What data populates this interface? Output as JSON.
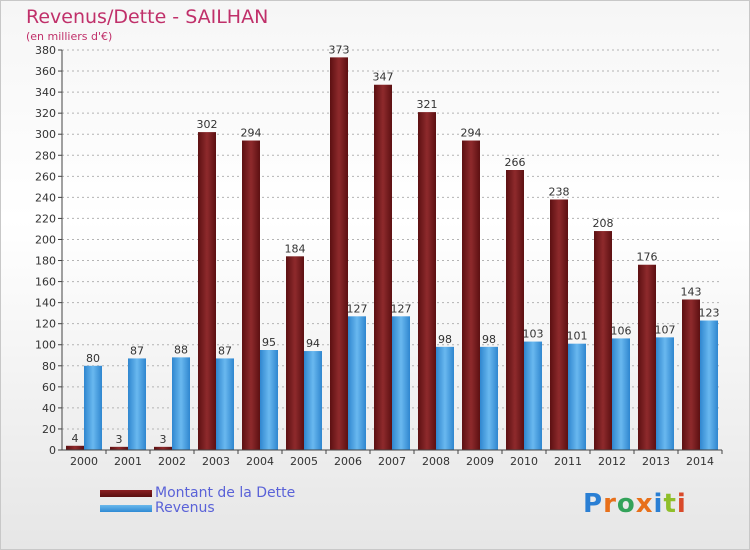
{
  "title": "Revenus/Dette - SAILHAN",
  "subtitle": "(en milliers d'€)",
  "logo": {
    "letters": [
      "P",
      "r",
      "o",
      "x",
      "i",
      "t",
      "i"
    ],
    "colors": [
      "#2a7fd4",
      "#e8701a",
      "#33a35a",
      "#e8701a",
      "#2a7fd4",
      "#8fbf2a",
      "#d94a2a"
    ]
  },
  "colors": {
    "dette": "#7a1a1c",
    "revenus": "#3b9ae0",
    "title": "#c0306a",
    "legend_text": "#5a62d8"
  },
  "chart_data": {
    "type": "bar",
    "title": "Revenus/Dette - SAILHAN",
    "subtitle": "(en milliers d'€)",
    "categories": [
      "2000",
      "2001",
      "2002",
      "2003",
      "2004",
      "2005",
      "2006",
      "2007",
      "2008",
      "2009",
      "2010",
      "2011",
      "2012",
      "2013",
      "2014"
    ],
    "series": [
      {
        "name": "Montant de la Dette",
        "values": [
          4,
          3,
          3,
          302,
          294,
          184,
          373,
          347,
          321,
          294,
          266,
          238,
          208,
          176,
          143
        ]
      },
      {
        "name": "Revenus",
        "values": [
          80,
          87,
          88,
          87,
          95,
          94,
          127,
          127,
          98,
          98,
          103,
          101,
          106,
          107,
          123
        ]
      }
    ],
    "ylim": [
      0,
      380
    ],
    "yticks": [
      0,
      20,
      40,
      60,
      80,
      100,
      120,
      140,
      160,
      180,
      200,
      220,
      240,
      260,
      280,
      300,
      320,
      340,
      360,
      380
    ],
    "grid": true,
    "legend": "bottom-left"
  }
}
